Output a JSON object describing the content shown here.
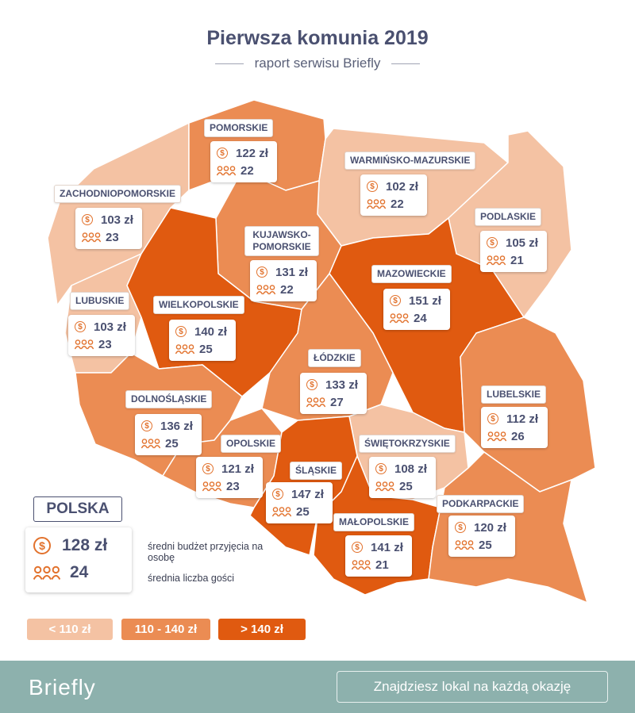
{
  "header": {
    "title": "Pierwsza komunia 2019",
    "subtitle": "raport serwisu Briefly"
  },
  "colors": {
    "low": "#f4c2a3",
    "mid": "#eb8c53",
    "high": "#e05a10",
    "accent": "#e2722d",
    "text": "#4a5070",
    "footer": "#8db1ad"
  },
  "icons": {
    "budget": "dollar-coin-icon",
    "guests": "people-icon"
  },
  "regions": [
    {
      "id": "pomorskie",
      "name": "POMORSKIE",
      "budget": "122 zł",
      "guests": "22",
      "tier": "mid"
    },
    {
      "id": "warminsko-mazurskie",
      "name": "WARMIŃSKO-MAZURSKIE",
      "budget": "102 zł",
      "guests": "22",
      "tier": "low"
    },
    {
      "id": "zachodniopomorskie",
      "name": "ZACHODNIOPOMORSKIE",
      "budget": "103 zł",
      "guests": "23",
      "tier": "low"
    },
    {
      "id": "podlaskie",
      "name": "PODLASKIE",
      "budget": "105 zł",
      "guests": "21",
      "tier": "low"
    },
    {
      "id": "kujawsko-pomorskie",
      "name": "KUJAWSKO-POMORSKIE",
      "budget": "131 zł",
      "guests": "22",
      "tier": "mid"
    },
    {
      "id": "mazowieckie",
      "name": "MAZOWIECKIE",
      "budget": "151 zł",
      "guests": "24",
      "tier": "high"
    },
    {
      "id": "lubuskie",
      "name": "LUBUSKIE",
      "budget": "103 zł",
      "guests": "23",
      "tier": "low"
    },
    {
      "id": "wielkopolskie",
      "name": "WIELKOPOLSKIE",
      "budget": "140 zł",
      "guests": "25",
      "tier": "high"
    },
    {
      "id": "lodzkie",
      "name": "ŁÓDZKIE",
      "budget": "133 zł",
      "guests": "27",
      "tier": "mid"
    },
    {
      "id": "lubelskie",
      "name": "LUBELSKIE",
      "budget": "112 zł",
      "guests": "26",
      "tier": "mid"
    },
    {
      "id": "dolnoslaskie",
      "name": "DOLNOŚLĄSKIE",
      "budget": "136 zł",
      "guests": "25",
      "tier": "mid"
    },
    {
      "id": "opolskie",
      "name": "OPOLSKIE",
      "budget": "121 zł",
      "guests": "23",
      "tier": "mid"
    },
    {
      "id": "swietokrzyskie",
      "name": "ŚWIĘTOKRZYSKIE",
      "budget": "108 zł",
      "guests": "25",
      "tier": "low"
    },
    {
      "id": "slaskie",
      "name": "ŚLĄSKIE",
      "budget": "147 zł",
      "guests": "25",
      "tier": "high"
    },
    {
      "id": "malopolskie",
      "name": "MAŁOPOLSKIE",
      "budget": "141 zł",
      "guests": "21",
      "tier": "high"
    },
    {
      "id": "podkarpackie",
      "name": "PODKARPACKIE",
      "budget": "120 zł",
      "guests": "25",
      "tier": "mid"
    }
  ],
  "summary": {
    "label": "POLSKA",
    "budget": "128 zł",
    "guests": "24",
    "budget_note": "średni budżet przyjęcia na osobę",
    "guests_note": "średnia liczba gości"
  },
  "legend": [
    {
      "label": "< 110 zł",
      "tier": "low"
    },
    {
      "label": "110 - 140 zł",
      "tier": "mid"
    },
    {
      "label": "> 140 zł",
      "tier": "high"
    }
  ],
  "footer": {
    "brand": "Briefly",
    "cta": "Znajdziesz lokal na każdą okazję"
  }
}
